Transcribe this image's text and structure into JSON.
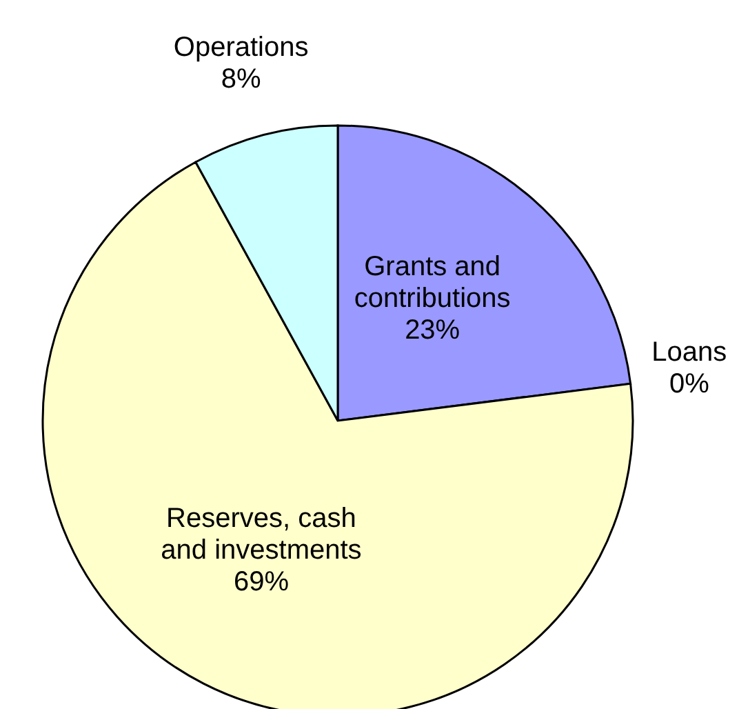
{
  "chart_data": {
    "type": "pie",
    "categories": [
      "Grants and contributions",
      "Loans",
      "Reserves, cash and investments",
      "Operations"
    ],
    "values": [
      23,
      0,
      69,
      8
    ],
    "colors": [
      "#9999ff",
      "#993366",
      "#ffffcc",
      "#ccffff"
    ],
    "value_labels": [
      "23%",
      "0%",
      "69%",
      "8%"
    ],
    "legend": false
  }
}
